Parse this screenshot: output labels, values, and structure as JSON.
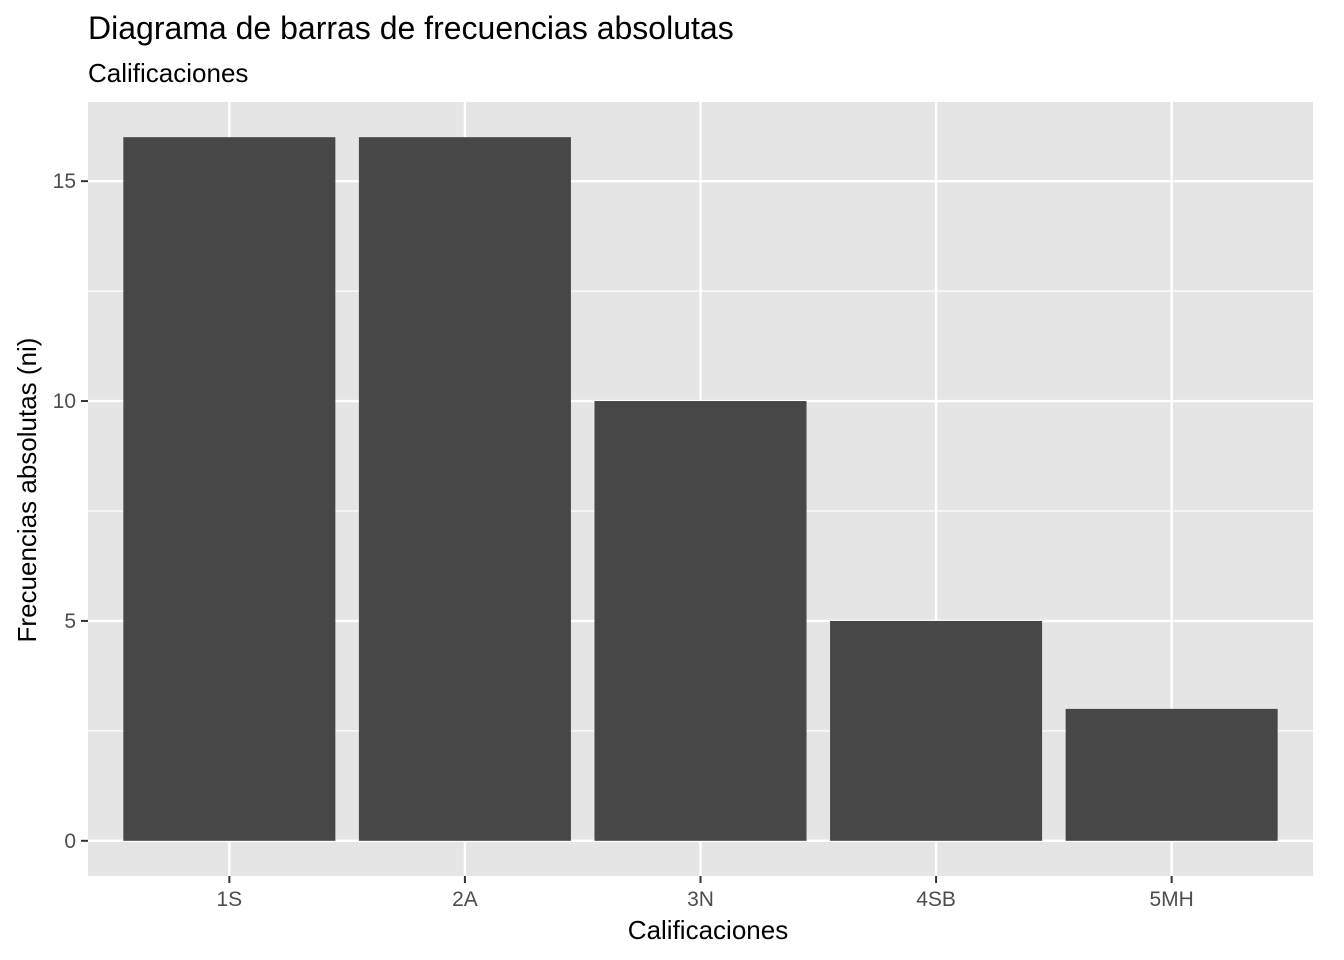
{
  "chart_data": {
    "type": "bar",
    "title": "Diagrama de barras de frecuencias absolutas",
    "subtitle": "Calificaciones",
    "xlabel": "Calificaciones",
    "ylabel": "Frecuencias absolutas (ni)",
    "categories": [
      "1S",
      "2A",
      "3N",
      "4SB",
      "5MH"
    ],
    "values": [
      16,
      16,
      10,
      5,
      3
    ],
    "ylim": [
      -0.8,
      16.8
    ],
    "yticks": [
      0,
      5,
      10,
      15
    ],
    "ytick_labels": [
      "0",
      "5",
      "10",
      "15"
    ],
    "grid": true,
    "legend": "none",
    "colors": {
      "bar": "#474747",
      "panel": "#e5e5e5",
      "grid": "#ffffff",
      "tick_text": "#4d4d4d"
    }
  }
}
